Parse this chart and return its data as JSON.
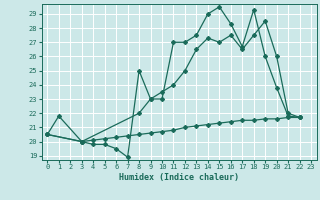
{
  "xlabel": "Humidex (Indice chaleur)",
  "bg_color": "#cce8e8",
  "line_color": "#1a6b5a",
  "grid_color": "#ffffff",
  "xlim": [
    -0.5,
    23.5
  ],
  "ylim": [
    18.7,
    29.7
  ],
  "yticks": [
    19,
    20,
    21,
    22,
    23,
    24,
    25,
    26,
    27,
    28,
    29
  ],
  "xticks": [
    0,
    1,
    2,
    3,
    4,
    5,
    6,
    7,
    8,
    9,
    10,
    11,
    12,
    13,
    14,
    15,
    16,
    17,
    18,
    19,
    20,
    21,
    22,
    23
  ],
  "line1_x": [
    0,
    1,
    3,
    4,
    5,
    6,
    7,
    8,
    9,
    10,
    11,
    12,
    13,
    14,
    15,
    16,
    17,
    18,
    19,
    20,
    21,
    22
  ],
  "line1_y": [
    20.5,
    21.8,
    20.0,
    19.8,
    19.8,
    19.5,
    18.9,
    25.0,
    23.0,
    23.0,
    27.0,
    27.0,
    27.5,
    29.0,
    29.5,
    28.3,
    26.7,
    29.3,
    26.0,
    23.8,
    21.8,
    21.7
  ],
  "line2_x": [
    0,
    3,
    8,
    9,
    10,
    11,
    12,
    13,
    14,
    15,
    16,
    17,
    18,
    19,
    20,
    21,
    22
  ],
  "line2_y": [
    20.5,
    20.0,
    22.0,
    23.0,
    23.5,
    24.0,
    25.0,
    26.5,
    27.3,
    27.0,
    27.5,
    26.5,
    27.5,
    28.5,
    26.0,
    22.0,
    21.7
  ],
  "line3_x": [
    0,
    3,
    4,
    5,
    6,
    7,
    8,
    9,
    10,
    11,
    12,
    13,
    14,
    15,
    16,
    17,
    18,
    19,
    20,
    21,
    22
  ],
  "line3_y": [
    20.5,
    20.0,
    20.1,
    20.2,
    20.3,
    20.4,
    20.5,
    20.6,
    20.7,
    20.8,
    21.0,
    21.1,
    21.2,
    21.3,
    21.4,
    21.5,
    21.5,
    21.6,
    21.6,
    21.7,
    21.7
  ]
}
